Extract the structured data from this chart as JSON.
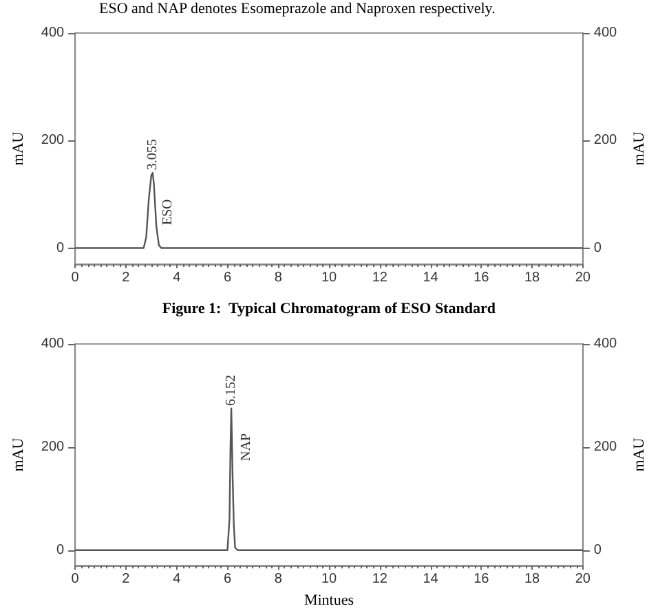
{
  "chart_data": [
    {
      "type": "line",
      "title": "Figure 1:  Typical Chromatogram of ESO Standard",
      "ylabel": "mAU",
      "y2label": "mAU",
      "annotations": [
        "ESO and NAP denotes Esomeprazole and Naproxen respectively.",
        {
          "text": "3.055",
          "x": 3.055,
          "y": 145
        },
        "ESO"
      ],
      "series": [
        {
          "color": "#555555",
          "x": [
            0,
            2.7,
            2.8,
            2.9,
            3.0,
            3.055,
            3.1,
            3.2,
            3.3,
            3.4,
            20
          ],
          "values": [
            0,
            0,
            20,
            90,
            135,
            140,
            120,
            40,
            5,
            0,
            0
          ]
        }
      ],
      "xlim": [
        0,
        20
      ],
      "xticks": [
        0,
        2,
        4,
        6,
        8,
        10,
        12,
        14,
        16,
        18,
        20
      ],
      "ylim": [
        -30,
        400
      ],
      "yticks": [
        0,
        200,
        400
      ],
      "y2lim": [
        -30,
        400
      ],
      "y2ticks": [
        0,
        200,
        400
      ]
    },
    {
      "type": "line",
      "xlabel": "Mintues",
      "ylabel": "mAU",
      "y2label": "mAU",
      "annotations": [
        {
          "text": "6.152",
          "x": 6.152,
          "y": 280
        },
        "NAP"
      ],
      "series": [
        {
          "color": "#555555",
          "x": [
            0,
            6.0,
            6.08,
            6.12,
            6.152,
            6.2,
            6.25,
            6.3,
            6.4,
            20
          ],
          "values": [
            0,
            0,
            60,
            200,
            275,
            150,
            50,
            5,
            0,
            0
          ]
        }
      ],
      "xlim": [
        0,
        20
      ],
      "xticks": [
        0,
        2,
        4,
        6,
        8,
        10,
        12,
        14,
        16,
        18,
        20
      ],
      "ylim": [
        -30,
        400
      ],
      "yticks": [
        0,
        200,
        400
      ],
      "y2lim": [
        -30,
        400
      ],
      "y2ticks": [
        0,
        200,
        400
      ]
    }
  ]
}
